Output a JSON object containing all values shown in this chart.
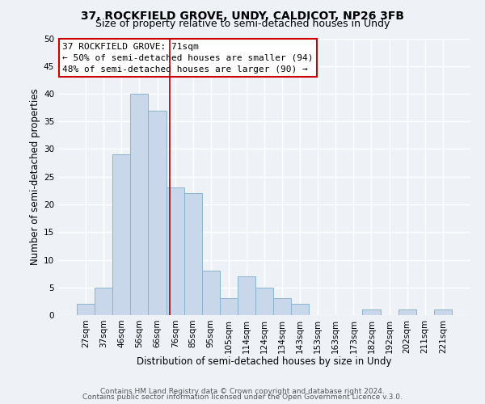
{
  "title1": "37, ROCKFIELD GROVE, UNDY, CALDICOT, NP26 3FB",
  "title2": "Size of property relative to semi-detached houses in Undy",
  "xlabel": "Distribution of semi-detached houses by size in Undy",
  "ylabel": "Number of semi-detached properties",
  "bin_labels": [
    "27sqm",
    "37sqm",
    "46sqm",
    "56sqm",
    "66sqm",
    "76sqm",
    "85sqm",
    "95sqm",
    "105sqm",
    "114sqm",
    "124sqm",
    "134sqm",
    "143sqm",
    "153sqm",
    "163sqm",
    "173sqm",
    "182sqm",
    "192sqm",
    "202sqm",
    "211sqm",
    "221sqm"
  ],
  "bin_values": [
    2,
    5,
    29,
    40,
    37,
    23,
    22,
    8,
    3,
    7,
    5,
    3,
    2,
    0,
    0,
    0,
    1,
    0,
    1,
    0,
    1
  ],
  "bar_color": "#c8d8ea",
  "bar_edgecolor": "#8ab4d0",
  "vline_x": 4.72,
  "vline_color": "#aa0000",
  "ylim": [
    0,
    50
  ],
  "yticks": [
    0,
    5,
    10,
    15,
    20,
    25,
    30,
    35,
    40,
    45,
    50
  ],
  "annotation_title": "37 ROCKFIELD GROVE: 71sqm",
  "annotation_line1": "← 50% of semi-detached houses are smaller (94)",
  "annotation_line2": "48% of semi-detached houses are larger (90) →",
  "annotation_box_color": "#ffffff",
  "annotation_box_edgecolor": "#cc0000",
  "footer1": "Contains HM Land Registry data © Crown copyright and database right 2024.",
  "footer2": "Contains public sector information licensed under the Open Government Licence v.3.0.",
  "background_color": "#eef2f7",
  "grid_color": "#ffffff",
  "title_fontsize": 10,
  "subtitle_fontsize": 9,
  "axis_label_fontsize": 8.5,
  "tick_fontsize": 7.5,
  "annotation_fontsize": 8,
  "footer_fontsize": 6.5
}
